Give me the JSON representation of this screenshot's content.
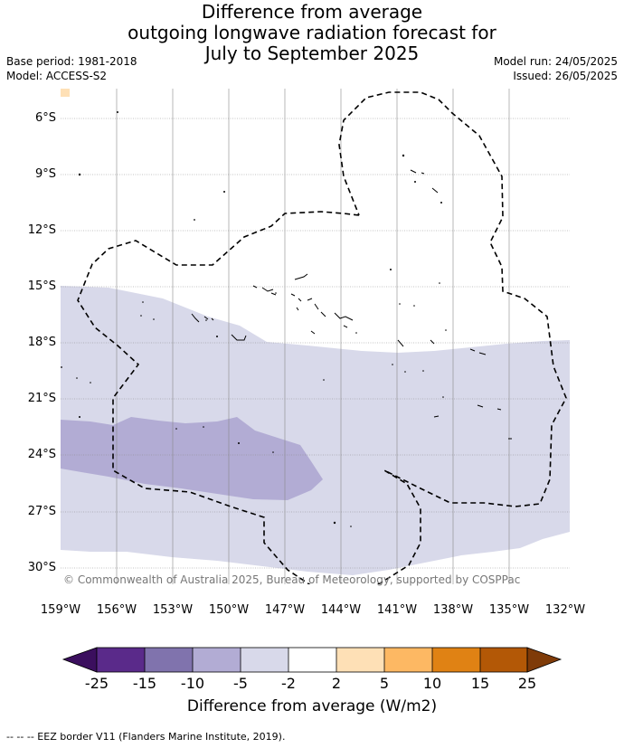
{
  "title_lines": [
    "Difference from average",
    "outgoing longwave radiation forecast for",
    "July to September 2025"
  ],
  "base_period": "Base period: 1981-2018",
  "model": "Model: ACCESS-S2",
  "model_run": "Model run: 24/05/2025",
  "issued": "Issued: 26/05/2025",
  "lat_labels": [
    "6°S",
    "9°S",
    "12°S",
    "15°S",
    "18°S",
    "21°S",
    "24°S",
    "27°S",
    "30°S"
  ],
  "lon_labels": [
    "159°W",
    "156°W",
    "153°W",
    "150°W",
    "147°W",
    "144°W",
    "141°W",
    "138°W",
    "135°W",
    "132°W"
  ],
  "credit": "© Commonwealth of Australia 2025, Bureau of Meteorology, supported by COSPPac",
  "colorbar": {
    "ticks": [
      "-25",
      "-15",
      "-10",
      "-5",
      "-2",
      "2",
      "5",
      "10",
      "15",
      "25"
    ],
    "colors": {
      "lt_minus25": "#3b0f5e",
      "m25_m15": "#5a2a8a",
      "m15_m10": "#8073ad",
      "m10_m5": "#b2acd4",
      "m5_m2": "#d8d9ea",
      "m2_p2": "#ffffff",
      "p2_p5": "#fee0b6",
      "p5_p10": "#fdb863",
      "p10_p15": "#e08214",
      "p15_p25": "#b35806",
      "gt_25": "#7f3b08"
    },
    "title": "Difference from average (W/m2)"
  },
  "footnote": "--  --  -- EEZ border V11 (Flanders Marine Institute, 2019)."
}
